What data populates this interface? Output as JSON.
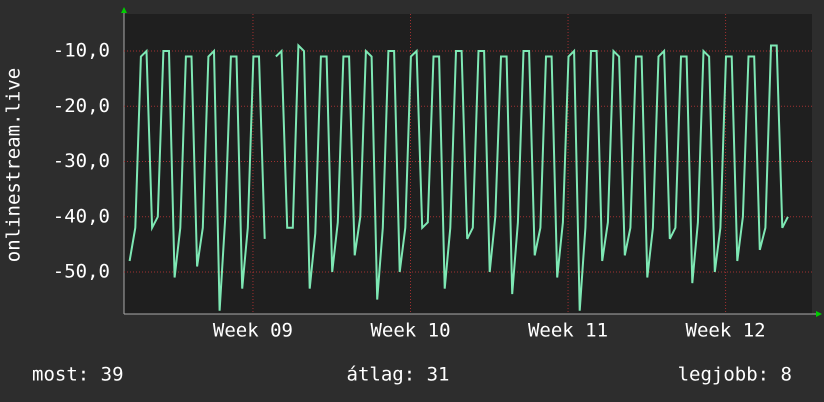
{
  "chart_data": {
    "type": "line",
    "y_label": "onlinestream.live",
    "x": [
      0.25,
      0.5,
      0.75,
      1,
      1.25,
      1.5,
      1.75,
      2,
      2.25,
      2.5,
      2.75,
      3,
      3.25,
      3.5,
      3.75,
      4,
      4.25,
      4.5,
      4.75,
      5,
      5.25,
      5.5,
      5.75,
      6,
      6.25,
      6.5,
      6.75,
      7,
      7.25,
      7.5,
      7.75,
      8,
      8.25,
      8.5,
      8.75,
      9,
      9.25,
      9.5,
      9.75,
      10,
      10.25,
      10.5,
      10.75,
      11,
      11.25,
      11.5,
      11.75,
      12,
      12.25,
      12.5,
      12.75,
      13,
      13.25,
      13.5,
      13.75,
      14,
      14.25,
      14.5,
      14.75,
      15,
      15.25,
      15.5,
      15.75,
      16,
      16.25,
      16.5,
      16.75,
      17,
      17.25,
      17.5,
      17.75,
      18,
      18.25,
      18.5,
      18.75,
      19,
      19.25,
      19.5,
      19.75,
      20,
      20.25,
      20.5,
      20.75,
      21,
      21.25,
      21.5,
      21.75,
      22,
      22.25,
      22.5,
      22.75,
      23,
      23.25,
      23.5,
      23.75,
      24,
      24.25,
      24.5,
      24.75,
      25,
      25.25,
      25.5,
      25.75,
      26,
      26.25,
      26.5,
      26.75,
      27,
      27.25,
      27.5,
      27.75,
      28,
      28.25,
      28.5,
      28.75,
      29,
      29.25,
      29.5
    ],
    "series": [
      {
        "name": "onlinestream.live",
        "color": "#7ee8b4",
        "values": [
          -48,
          -42,
          -11,
          -10,
          -42,
          -40,
          -10,
          -10,
          -51,
          -42,
          -11,
          -11,
          -49,
          -42,
          -11,
          -10,
          -57,
          -40,
          -11,
          -11,
          -53,
          -42,
          -11,
          -11,
          -44,
          null,
          -11,
          -10,
          -42,
          -42,
          -9,
          -10,
          -53,
          -43,
          -11,
          -11,
          -50,
          -41,
          -11,
          -11,
          -47,
          -40,
          -10,
          -11,
          -55,
          -42,
          -10,
          -10,
          -50,
          -42,
          -11,
          -10,
          -42,
          -41,
          -11,
          -11,
          -53,
          -42,
          -10,
          -10,
          -44,
          -42,
          -10,
          -10,
          -50,
          -40,
          -11,
          -11,
          -54,
          -41,
          -10,
          -10,
          -47,
          -42,
          -11,
          -11,
          -51,
          -41,
          -11,
          -10,
          -57,
          -42,
          -10,
          -10,
          -48,
          -41,
          -10,
          -11,
          -47,
          -42,
          -11,
          -11,
          -51,
          -42,
          -11,
          -10,
          -44,
          -42,
          -11,
          -11,
          -52,
          -41,
          -10,
          -11,
          -50,
          -42,
          -11,
          -11,
          -48,
          -40,
          -11,
          -11,
          -46,
          -42,
          -9,
          -9,
          -42,
          -40
        ]
      }
    ],
    "xlim": [
      0,
      30.57
    ],
    "xticks": [
      {
        "value": 5.73,
        "label": "Week 09"
      },
      {
        "value": 12.73,
        "label": "Week 10"
      },
      {
        "value": 19.73,
        "label": "Week 11"
      },
      {
        "value": 26.73,
        "label": "Week 12"
      }
    ],
    "ylim": [
      -57.6,
      -3.3
    ],
    "yticks": [
      {
        "value": -50,
        "label": "-50,0"
      },
      {
        "value": -40,
        "label": "-40,0"
      },
      {
        "value": -30,
        "label": "-30,0"
      },
      {
        "value": -20,
        "label": "-20,0"
      },
      {
        "value": -10,
        "label": "-10,0"
      }
    ],
    "grid": true,
    "stats": [
      "most: 39",
      "átlag: 31",
      "legjobb: 8"
    ]
  }
}
